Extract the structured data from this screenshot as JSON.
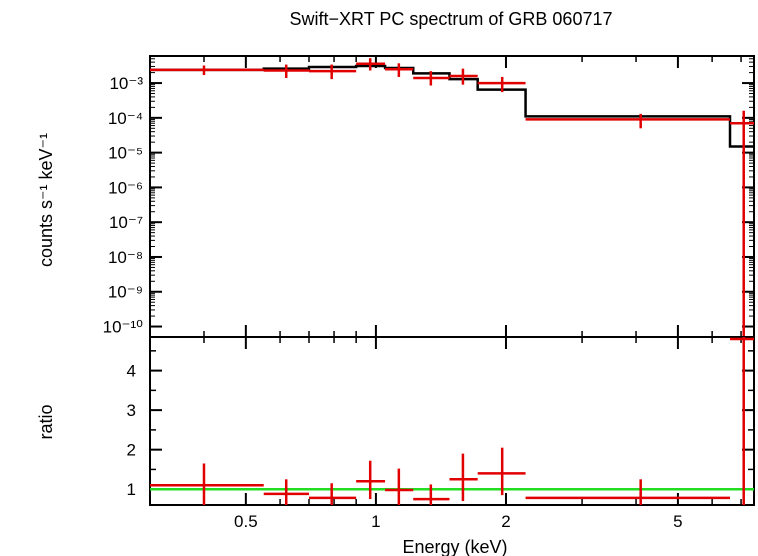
{
  "chart_data": [
    {
      "type": "line",
      "panel": "top",
      "title": "Swift−XRT PC spectrum of GRB 060717",
      "ylabel": "counts s⁻¹ keV⁻¹",
      "xlabel": "",
      "xscale": "log",
      "yscale": "log",
      "xlim": [
        0.3,
        7.5
      ],
      "ylim": [
        5e-11,
        0.006
      ],
      "ytick_labels": [
        "10⁻¹⁰",
        "10⁻⁹",
        "10⁻⁸",
        "10⁻⁷",
        "10⁻⁶",
        "10⁻⁵",
        "10⁻⁴",
        "10⁻³"
      ],
      "ytick_values": [
        1e-10,
        1e-09,
        1e-08,
        1e-07,
        1e-06,
        1e-05,
        0.0001,
        0.001
      ],
      "series": [
        {
          "kind": "errorbar",
          "color": "#e00000",
          "points": [
            {
              "x": 0.4,
              "xlo": 0.3,
              "xhi": 0.55,
              "y": 0.0024,
              "ylo": 0.0017,
              "yhi": 0.0032
            },
            {
              "x": 0.62,
              "xlo": 0.55,
              "xhi": 0.7,
              "y": 0.0023,
              "ylo": 0.0014,
              "yhi": 0.0034
            },
            {
              "x": 0.79,
              "xlo": 0.7,
              "xhi": 0.9,
              "y": 0.0022,
              "ylo": 0.0013,
              "yhi": 0.0034
            },
            {
              "x": 0.97,
              "xlo": 0.9,
              "xhi": 1.05,
              "y": 0.0036,
              "ylo": 0.0023,
              "yhi": 0.0052
            },
            {
              "x": 1.13,
              "xlo": 1.05,
              "xhi": 1.22,
              "y": 0.0025,
              "ylo": 0.0015,
              "yhi": 0.0037
            },
            {
              "x": 1.34,
              "xlo": 1.22,
              "xhi": 1.48,
              "y": 0.0014,
              "ylo": 0.00085,
              "yhi": 0.0022
            },
            {
              "x": 1.59,
              "xlo": 1.48,
              "xhi": 1.72,
              "y": 0.0016,
              "ylo": 0.0009,
              "yhi": 0.0026
            },
            {
              "x": 1.96,
              "xlo": 1.72,
              "xhi": 2.22,
              "y": 0.001,
              "ylo": 0.00055,
              "yhi": 0.0015
            },
            {
              "x": 4.1,
              "xlo": 2.22,
              "xhi": 6.6,
              "y": 9e-05,
              "ylo": 5e-05,
              "yhi": 0.00013
            },
            {
              "x": 7.1,
              "xlo": 6.6,
              "xhi": 7.5,
              "y": 7e-05,
              "ylo": 5e-11,
              "yhi": 0.00016
            }
          ]
        },
        {
          "kind": "step",
          "name": "",
          "color": "#000000",
          "edges": [
            0.3,
            0.55,
            0.7,
            0.9,
            1.05,
            1.22,
            1.48,
            1.72,
            2.22,
            6.6,
            7.5
          ],
          "values": [
            0.0024,
            0.0026,
            0.0029,
            0.0031,
            0.0027,
            0.0019,
            0.0013,
            0.00065,
            0.00011,
            1.5e-05
          ]
        }
      ]
    },
    {
      "type": "line",
      "panel": "bottom",
      "ylabel": "ratio",
      "xlabel": "Energy (keV)",
      "xscale": "log",
      "yscale": "linear",
      "xlim": [
        0.3,
        7.5
      ],
      "ylim": [
        0.6,
        4.85
      ],
      "ytick_labels": [
        "1",
        "2",
        "3",
        "4"
      ],
      "ytick_values": [
        1,
        2,
        3,
        4
      ],
      "xtick_labels": [
        "0.5",
        "1",
        "2",
        "5"
      ],
      "xtick_values": [
        0.5,
        1,
        2,
        5
      ],
      "reference_line": {
        "y": 1,
        "color": "#22dd22"
      },
      "series": [
        {
          "kind": "errorbar",
          "color": "#e00000",
          "points": [
            {
              "x": 0.4,
              "xlo": 0.3,
              "xhi": 0.55,
              "y": 1.1,
              "ylo": 0.6,
              "yhi": 1.65
            },
            {
              "x": 0.62,
              "xlo": 0.55,
              "xhi": 0.7,
              "y": 0.88,
              "ylo": 0.6,
              "yhi": 1.25
            },
            {
              "x": 0.79,
              "xlo": 0.7,
              "xhi": 0.9,
              "y": 0.78,
              "ylo": 0.6,
              "yhi": 1.15
            },
            {
              "x": 0.97,
              "xlo": 0.9,
              "xhi": 1.05,
              "y": 1.2,
              "ylo": 0.75,
              "yhi": 1.72
            },
            {
              "x": 1.13,
              "xlo": 1.05,
              "xhi": 1.22,
              "y": 0.98,
              "ylo": 0.6,
              "yhi": 1.52
            },
            {
              "x": 1.34,
              "xlo": 1.22,
              "xhi": 1.48,
              "y": 0.75,
              "ylo": 0.6,
              "yhi": 1.12
            },
            {
              "x": 1.59,
              "xlo": 1.48,
              "xhi": 1.72,
              "y": 1.25,
              "ylo": 0.7,
              "yhi": 1.9
            },
            {
              "x": 1.96,
              "xlo": 1.72,
              "xhi": 2.22,
              "y": 1.4,
              "ylo": 0.85,
              "yhi": 2.05
            },
            {
              "x": 4.1,
              "xlo": 2.22,
              "xhi": 6.6,
              "y": 0.78,
              "ylo": 0.6,
              "yhi": 1.25
            },
            {
              "x": 7.1,
              "xlo": 6.6,
              "xhi": 7.5,
              "y": 4.8,
              "ylo": 0.6,
              "yhi": 4.85
            }
          ]
        }
      ]
    }
  ]
}
